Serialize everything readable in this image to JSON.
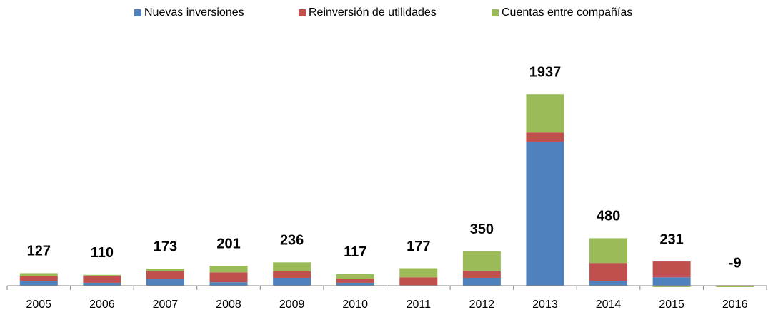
{
  "chart_data": {
    "type": "stacked-bar",
    "categories": [
      "2005",
      "2006",
      "2007",
      "2008",
      "2009",
      "2010",
      "2011",
      "2012",
      "2013",
      "2014",
      "2015",
      "2016"
    ],
    "series": [
      {
        "name": "Nuevas inversiones",
        "color": "#4f81bd",
        "values": [
          50,
          30,
          65,
          35,
          80,
          30,
          5,
          80,
          1454,
          50,
          85,
          0
        ]
      },
      {
        "name": "Reinversión de utilidades",
        "color": "#c0504d",
        "values": [
          45,
          70,
          86,
          100,
          65,
          42,
          80,
          72,
          94,
          180,
          160,
          5
        ]
      },
      {
        "name": "Cuentas entre compañías",
        "color": "#9bbb59",
        "values": [
          32,
          10,
          22,
          66,
          91,
          45,
          92,
          198,
          389,
          250,
          -14,
          -14
        ]
      }
    ],
    "totals": [
      127,
      110,
      173,
      201,
      236,
      117,
      177,
      350,
      1937,
      480,
      231,
      -9
    ],
    "ylim": [
      -50,
      2400
    ],
    "legend": "top"
  }
}
